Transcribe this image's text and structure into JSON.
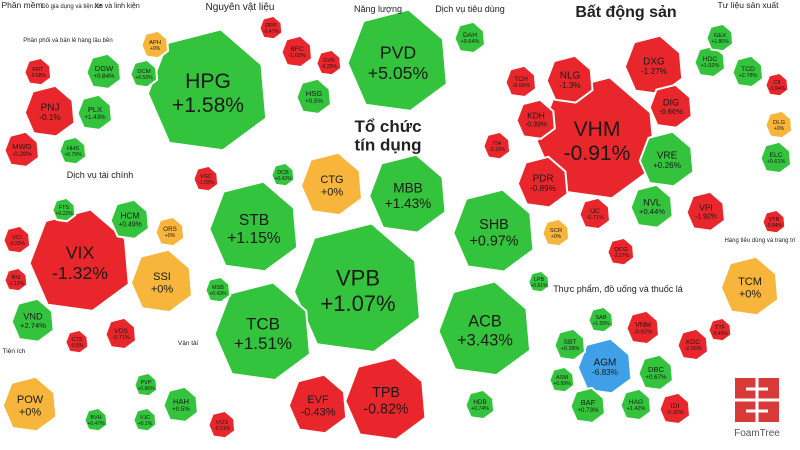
{
  "chart_data": {
    "type": "heatmap",
    "colors": {
      "up": "#33c33c",
      "down": "#e8262b",
      "flat": "#f7b53b",
      "floor": "#3fa0e8",
      "bg": "#ffffff",
      "text": "#1a1a1a"
    },
    "brand": "FoamTree",
    "sections": [
      {
        "label": "Phần mềm"
      },
      {
        "label": "Đồ gia dụng và tiện ích"
      },
      {
        "label": "Xe và linh kiện"
      },
      {
        "label": "Nguyên vật liệu"
      },
      {
        "label": "Năng lượng"
      },
      {
        "label": "Dịch vụ tiêu dùng"
      },
      {
        "label": "Bất động sản"
      },
      {
        "label": "Tư liệu sản xuất"
      },
      {
        "label": "Phần phối và bán lẻ hàng lâu bền"
      },
      {
        "label": "Tổ chức tín dụng"
      },
      {
        "label": "Dịch vụ tài chính"
      },
      {
        "label": "Vận tải"
      },
      {
        "label": "Tiện ích"
      },
      {
        "label": "Thực phẩm, đồ uống và thuốc lá"
      },
      {
        "label": "Hàng tiêu dùng và trang trí"
      }
    ],
    "stocks": [
      {
        "ticker": "HPG",
        "change": "+1.58%",
        "v": 1.58,
        "big": true
      },
      {
        "ticker": "PVD",
        "change": "+5.05%",
        "v": 5.05,
        "big": true
      },
      {
        "ticker": "VHM",
        "change": "-0.91%",
        "v": -0.91,
        "big": true
      },
      {
        "ticker": "VIX",
        "change": "-1.32%",
        "v": -1.32,
        "big": true
      },
      {
        "ticker": "SSI",
        "change": "+0%",
        "v": 0,
        "big": true
      },
      {
        "ticker": "CTG",
        "change": "+0%",
        "v": 0,
        "big": true
      },
      {
        "ticker": "MBB",
        "change": "+1.43%",
        "v": 1.43,
        "big": true
      },
      {
        "ticker": "STB",
        "change": "+1.15%",
        "v": 1.15,
        "big": true
      },
      {
        "ticker": "SHB",
        "change": "+0.97%",
        "v": 0.97,
        "big": true
      },
      {
        "ticker": "VPB",
        "change": "+1.07%",
        "v": 1.07,
        "big": true
      },
      {
        "ticker": "TCB",
        "change": "+1.51%",
        "v": 1.51,
        "big": true
      },
      {
        "ticker": "ACB",
        "change": "+3.43%",
        "v": 3.43,
        "big": true
      },
      {
        "ticker": "EVF",
        "change": "-0.43%",
        "v": -0.43,
        "big": true
      },
      {
        "ticker": "TPB",
        "change": "-0.82%",
        "v": -0.82,
        "big": true
      },
      {
        "ticker": "TCM",
        "change": "+0%",
        "v": 0,
        "big": true
      },
      {
        "ticker": "POW",
        "change": "+0%",
        "v": 0,
        "big": true
      },
      {
        "ticker": "NLG",
        "change": "-1.3%",
        "v": -1.3
      },
      {
        "ticker": "DXG",
        "change": "-1.27%",
        "v": -1.27
      },
      {
        "ticker": "PDR",
        "change": "-0.89%",
        "v": -0.89
      },
      {
        "ticker": "VRE",
        "change": "+0.26%",
        "v": 0.26
      },
      {
        "ticker": "NVL",
        "change": "+0.44%",
        "v": 0.44
      },
      {
        "ticker": "VPI",
        "change": "-1.92%",
        "v": -1.92
      },
      {
        "ticker": "DIG",
        "change": "-0.66%",
        "v": -0.66
      },
      {
        "ticker": "KDH",
        "change": "-0.39%",
        "v": -0.39
      },
      {
        "ticker": "TCH",
        "change": "-0.56%",
        "v": -0.56
      },
      {
        "ticker": "IJC",
        "change": "-0.71%",
        "v": -0.71
      },
      {
        "ticker": "QCG",
        "change": "-3.37%",
        "v": -3.37
      },
      {
        "ticker": "HDC",
        "change": "+1.02%",
        "v": 1.02
      },
      {
        "ticker": "ITA",
        "change": "-3.15%",
        "v": -3.15
      },
      {
        "ticker": "SCR",
        "change": "+0%",
        "v": 0
      },
      {
        "ticker": "PNJ",
        "change": "-0.1%",
        "v": -0.1
      },
      {
        "ticker": "MWG",
        "change": "-0.29%",
        "v": -0.29
      },
      {
        "ticker": "PLX",
        "change": "+1.43%",
        "v": 1.43
      },
      {
        "ticker": "DGW",
        "change": "+0.84%",
        "v": 0.84
      },
      {
        "ticker": "FRT",
        "change": "-0.68%",
        "v": -0.68
      },
      {
        "ticker": "HHS",
        "change": "+0.79%",
        "v": 0.79
      },
      {
        "ticker": "HSG",
        "change": "+0.5%",
        "v": 0.5
      },
      {
        "ticker": "APH",
        "change": "+0%",
        "v": 0
      },
      {
        "ticker": "BFC",
        "change": "-1.03%",
        "v": -1.03
      },
      {
        "ticker": "DCM",
        "change": "+0.53%",
        "v": 0.53
      },
      {
        "ticker": "DPR",
        "change": "-0.47%",
        "v": -0.47
      },
      {
        "ticker": "GVR",
        "change": "-0.25%",
        "v": -0.25
      },
      {
        "ticker": "VGC",
        "change": "-1.03%",
        "v": -1.03
      },
      {
        "ticker": "DAH",
        "change": "+0.64%",
        "v": 0.64
      },
      {
        "ticker": "HCM",
        "change": "+0.49%",
        "v": 0.49
      },
      {
        "ticker": "VND",
        "change": "+2.74%",
        "v": 2.74
      },
      {
        "ticker": "VCI",
        "change": "-0.29%",
        "v": -0.29
      },
      {
        "ticker": "ORS",
        "change": "+0%",
        "v": 0
      },
      {
        "ticker": "VDS",
        "change": "-0.71%",
        "v": -0.71
      },
      {
        "ticker": "CTS",
        "change": "-0.5%",
        "v": -0.5
      },
      {
        "ticker": "FTS",
        "change": "+0.22%",
        "v": 0.22
      },
      {
        "ticker": "BSI",
        "change": "-1.12%",
        "v": -1.12
      },
      {
        "ticker": "HAH",
        "change": "+0.5%",
        "v": 0.5
      },
      {
        "ticker": "VOS",
        "change": "-0.31%",
        "v": -0.31
      },
      {
        "ticker": "VJC",
        "change": "+0.1%",
        "v": 0.1
      },
      {
        "ticker": "BVH",
        "change": "+0.47%",
        "v": 0.47
      },
      {
        "ticker": "PVP",
        "change": "+0.96%",
        "v": 0.96
      },
      {
        "ticker": "AGM",
        "change": "-6.83%",
        "v": -6.83
      },
      {
        "ticker": "VNM",
        "change": "-0.82%",
        "v": -0.82
      },
      {
        "ticker": "SBT",
        "change": "+0.38%",
        "v": 0.38
      },
      {
        "ticker": "DBC",
        "change": "+0.67%",
        "v": 0.67
      },
      {
        "ticker": "KDC",
        "change": "-2.56%",
        "v": -2.56
      },
      {
        "ticker": "BAF",
        "change": "+0.73%",
        "v": 0.73
      },
      {
        "ticker": "HAG",
        "change": "+1.42%",
        "v": 1.42
      },
      {
        "ticker": "IDI",
        "change": "-0.32%",
        "v": -0.32
      },
      {
        "ticker": "SAB",
        "change": "+1.59%",
        "v": 1.59
      },
      {
        "ticker": "ASM",
        "change": "+0.99%",
        "v": 0.99
      },
      {
        "ticker": "GEX",
        "change": "+1.86%",
        "v": 1.86
      },
      {
        "ticker": "TCD",
        "change": "+2.78%",
        "v": 2.78
      },
      {
        "ticker": "CII",
        "change": "-1.94%",
        "v": -1.94
      },
      {
        "ticker": "DLG",
        "change": "+0%",
        "v": 0
      },
      {
        "ticker": "ELC",
        "change": "+0.61%",
        "v": 0.61
      },
      {
        "ticker": "VTB",
        "change": "-0.94%",
        "v": -0.94
      },
      {
        "ticker": "HDB",
        "change": "+0.74%",
        "v": 0.74
      },
      {
        "ticker": "TTF",
        "change": "-0.46%",
        "v": -0.46
      },
      {
        "ticker": "LPB",
        "change": "+0.61%",
        "v": 0.61
      },
      {
        "ticker": "MSB",
        "change": "+0.43%",
        "v": 0.43
      },
      {
        "ticker": "DCB",
        "change": "+0.43%",
        "v": 0.43
      }
    ]
  }
}
